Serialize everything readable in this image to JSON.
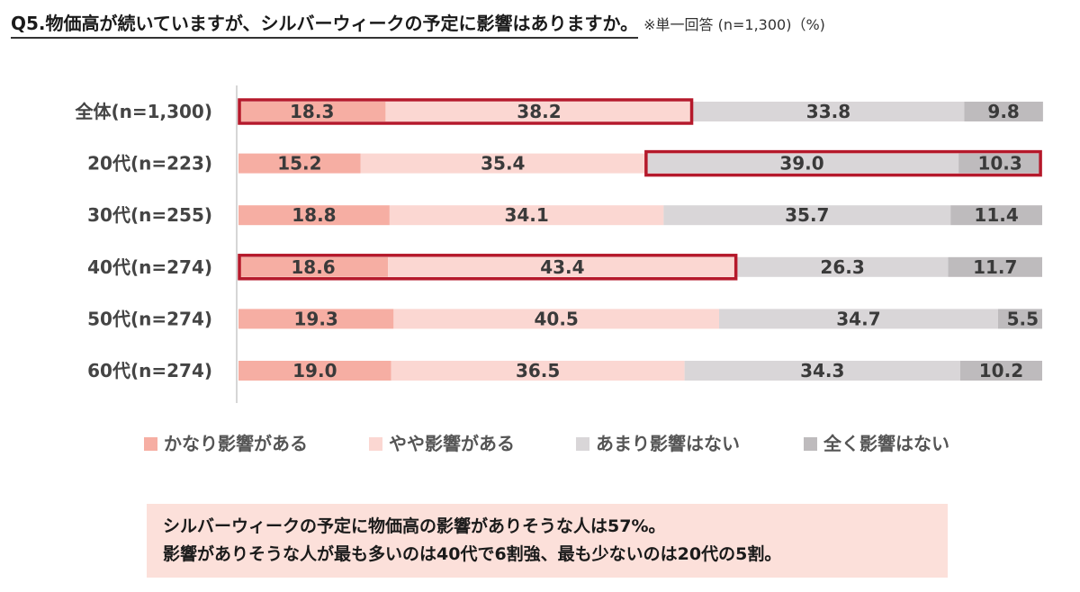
{
  "header": {
    "question": "Q5.物価高が続いていますが、シルバーウィークの予定に影響はありますか。",
    "note": "※単一回答 (n=1,300)（%)"
  },
  "colors": {
    "strong": "#f6aea3",
    "some": "#fbd7d2",
    "little": "#d9d6d8",
    "none": "#bebbbd",
    "highlight": "#b5192b",
    "axis": "#c8c8c8"
  },
  "chart_data": {
    "type": "bar",
    "orientation": "horizontal-stacked-100",
    "categories": [
      "全体(n=1,300)",
      "20代(n=223)",
      "30代(n=255)",
      "40代(n=274)",
      "50代(n=274)",
      "60代(n=274)"
    ],
    "series": [
      {
        "name": "かなり影響がある",
        "values": [
          18.3,
          15.2,
          18.8,
          18.6,
          19.3,
          19.0
        ]
      },
      {
        "name": "やや影響がある",
        "values": [
          38.2,
          35.4,
          34.1,
          43.4,
          40.5,
          36.5
        ]
      },
      {
        "name": "あまり影響はない",
        "values": [
          33.8,
          39.0,
          35.7,
          26.3,
          34.7,
          34.3
        ]
      },
      {
        "name": "全く影響はない",
        "values": [
          9.8,
          10.3,
          11.4,
          11.7,
          5.5,
          10.2
        ]
      }
    ],
    "legend_position": "bottom",
    "highlights": [
      {
        "category": "全体(n=1,300)",
        "series": [
          "かなり影響がある",
          "やや影響がある"
        ]
      },
      {
        "category": "20代(n=223)",
        "series": [
          "あまり影響はない",
          "全く影響はない"
        ]
      },
      {
        "category": "40代(n=274)",
        "series": [
          "かなり影響がある",
          "やや影響がある"
        ]
      }
    ]
  },
  "summary": {
    "line1": "シルバーウィークの予定に物価高の影響がありそうな人は57%。",
    "line2": "影響がありそうな人が最も多いのは40代で6割強、最も少ないのは20代の5割。"
  }
}
